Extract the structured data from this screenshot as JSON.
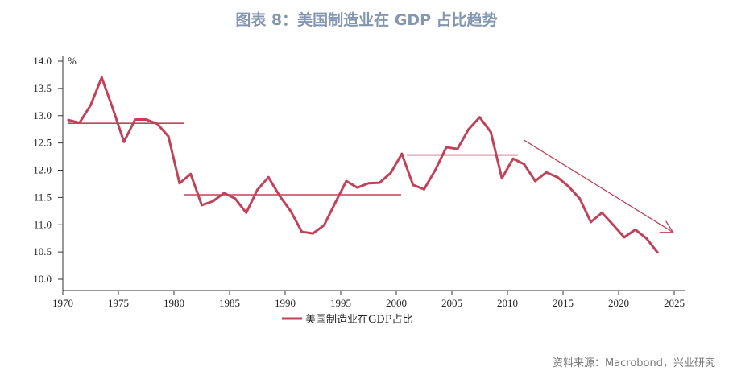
{
  "title": "图表 8：美国制造业在 GDP 占比趋势",
  "source": "资料来源：Macrobond，兴业研究",
  "colors": {
    "series": "#c0435a",
    "axis": "#333333",
    "title": "#8497b0"
  },
  "chart_data": {
    "type": "line",
    "title": "图表 8：美国制造业在 GDP 占比趋势",
    "ylabel": "%",
    "xlim": [
      1970,
      2025
    ],
    "ylim": [
      10.0,
      14.0
    ],
    "xticks": [
      1970,
      1975,
      1980,
      1985,
      1990,
      1995,
      2000,
      2005,
      2010,
      2015,
      2020,
      2025
    ],
    "yticks": [
      "10.0",
      "10.5",
      "11.0",
      "11.5",
      "12.0",
      "12.5",
      "13.0",
      "13.5",
      "14.0"
    ],
    "grid": false,
    "legend_position": "bottom",
    "series": [
      {
        "name": "美国制造业在GDP占比",
        "x": [
          1970,
          1971,
          1972,
          1973,
          1974,
          1975,
          1976,
          1977,
          1978,
          1979,
          1980,
          1981,
          1982,
          1983,
          1984,
          1985,
          1986,
          1987,
          1988,
          1989,
          1990,
          1991,
          1992,
          1993,
          1994,
          1995,
          1996,
          1997,
          1998,
          1999,
          2000,
          2001,
          2002,
          2003,
          2004,
          2005,
          2006,
          2007,
          2008,
          2009,
          2010,
          2011,
          2012,
          2013,
          2014,
          2015,
          2016,
          2017,
          2018,
          2019,
          2020,
          2021,
          2022,
          2023
        ],
        "values": [
          12.92,
          12.87,
          13.19,
          13.7,
          13.13,
          12.52,
          12.93,
          12.93,
          12.85,
          12.62,
          11.76,
          11.93,
          11.36,
          11.43,
          11.58,
          11.48,
          11.22,
          11.64,
          11.87,
          11.53,
          11.25,
          10.87,
          10.84,
          10.99,
          11.4,
          11.8,
          11.68,
          11.76,
          11.77,
          11.95,
          12.3,
          11.73,
          11.65,
          12.0,
          12.42,
          12.39,
          12.75,
          12.97,
          12.7,
          11.85,
          12.21,
          12.11,
          11.8,
          11.96,
          11.87,
          11.7,
          11.48,
          11.05,
          11.22,
          11.0,
          10.77,
          10.91,
          10.75,
          10.49
        ]
      }
    ],
    "annotations": {
      "average_lines": [
        {
          "x": [
            1970,
            1980.5
          ],
          "y": 12.86
        },
        {
          "x": [
            1980.5,
            2000
          ],
          "y": 11.55
        },
        {
          "x": [
            2000.5,
            2010.5
          ],
          "y": 12.28
        }
      ],
      "trend_arrow": {
        "from": [
          2011.5,
          12.55
        ],
        "to": [
          2024.9,
          10.86
        ]
      }
    }
  }
}
